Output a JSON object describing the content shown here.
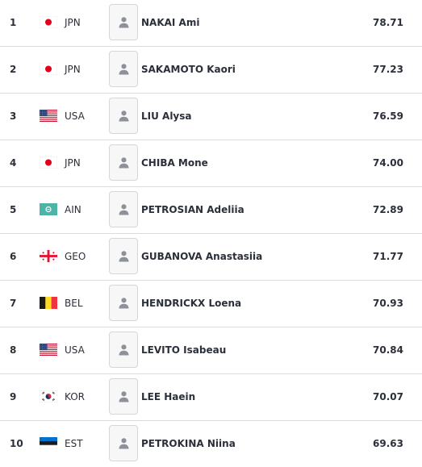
{
  "results": [
    {
      "rank": "1",
      "flag_icon": "japan-flag-icon",
      "nation": "JPN",
      "name": "NAKAI Ami",
      "score": "78.71"
    },
    {
      "rank": "2",
      "flag_icon": "japan-flag-icon",
      "nation": "JPN",
      "name": "SAKAMOTO Kaori",
      "score": "77.23"
    },
    {
      "rank": "3",
      "flag_icon": "usa-flag-icon",
      "nation": "USA",
      "name": "LIU Alysa",
      "score": "76.59"
    },
    {
      "rank": "4",
      "flag_icon": "japan-flag-icon",
      "nation": "JPN",
      "name": "CHIBA Mone",
      "score": "74.00"
    },
    {
      "rank": "5",
      "flag_icon": "ain-flag-icon",
      "nation": "AIN",
      "name": "PETROSIAN Adeliia",
      "score": "72.89"
    },
    {
      "rank": "6",
      "flag_icon": "georgia-flag-icon",
      "nation": "GEO",
      "name": "GUBANOVA Anastasiia",
      "score": "71.77"
    },
    {
      "rank": "7",
      "flag_icon": "belgium-flag-icon",
      "nation": "BEL",
      "name": "HENDRICKX Loena",
      "score": "70.93"
    },
    {
      "rank": "8",
      "flag_icon": "usa-flag-icon",
      "nation": "USA",
      "name": "LEVITO Isabeau",
      "score": "70.84"
    },
    {
      "rank": "9",
      "flag_icon": "korea-flag-icon",
      "nation": "KOR",
      "name": "LEE Haein",
      "score": "70.07"
    },
    {
      "rank": "10",
      "flag_icon": "estonia-flag-icon",
      "nation": "EST",
      "name": "PETROKINA Niina",
      "score": "69.63"
    }
  ],
  "avatar_icon": "person-placeholder-icon",
  "colors": {
    "text": "#2b2f3a",
    "divider": "#d9dbdf",
    "avatar_border": "#d4d6da",
    "avatar_icon": "#8d9199"
  }
}
